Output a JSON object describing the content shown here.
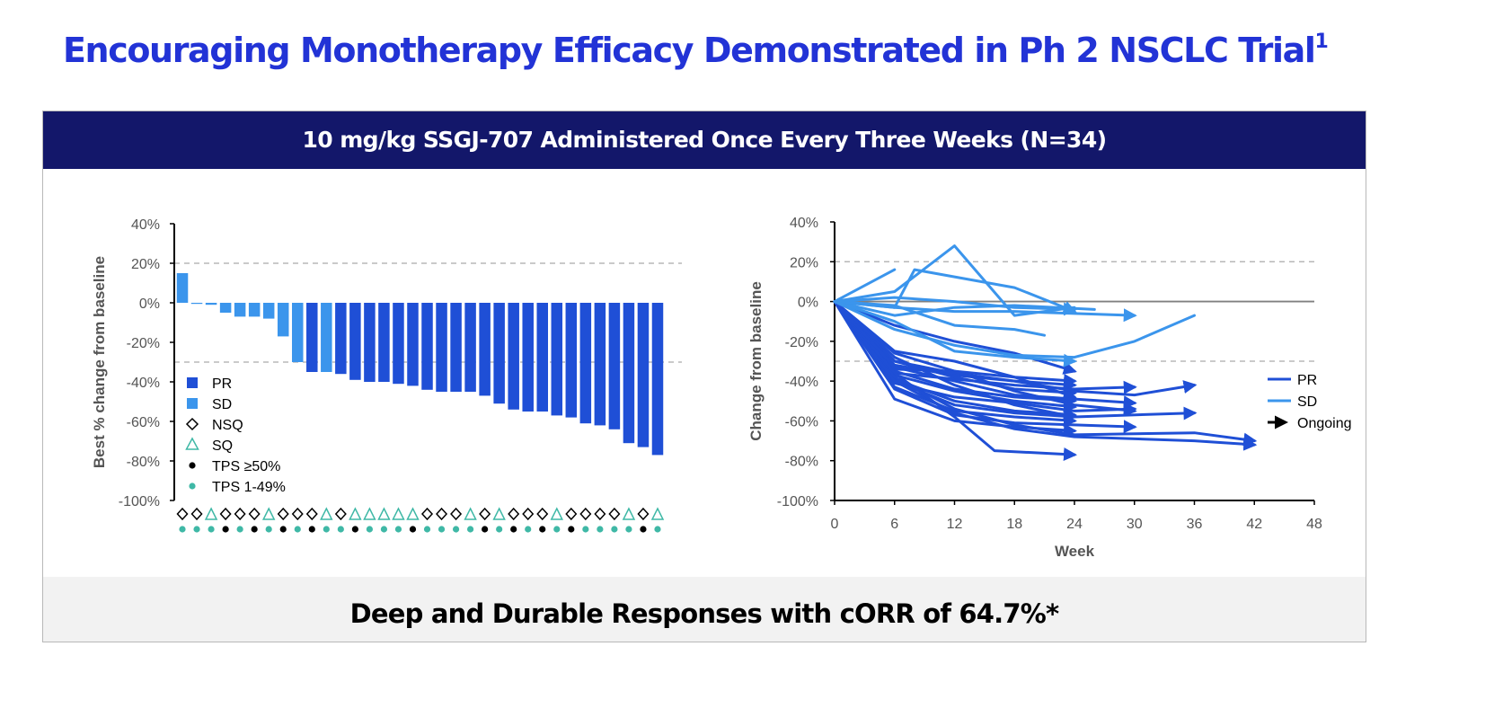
{
  "page": {
    "title": "Encouraging Monotherapy Efficacy Demonstrated in Ph 2 NSCLC Trial",
    "title_sup": "1",
    "banner": "10 mg/kg SSGJ-707 Administered Once Every Three Weeks (N=34)",
    "footer": "Deep and Durable Responses with cORR of 64.7%*"
  },
  "colors": {
    "pr": "#1f4fd6",
    "sd": "#3b95ec",
    "sq": "#3fb8a6",
    "tps_high": "#000000",
    "tps_low": "#3fb8a6",
    "title": "#2233d6",
    "banner": "#13176a"
  },
  "chart_data": [
    {
      "type": "bar",
      "ylabel": "Best % change from baseline",
      "ylim": [
        -100,
        40
      ],
      "yticks": [
        40,
        20,
        0,
        -20,
        -40,
        -60,
        -80,
        -100
      ],
      "ytick_labels": [
        "40%",
        "20%",
        "0%",
        "-20%",
        "-40%",
        "-60%",
        "-80%",
        "-100%"
      ],
      "reference_lines": [
        20,
        -30
      ],
      "legend": [
        {
          "label": "PR",
          "kind": "square-pr"
        },
        {
          "label": "SD",
          "kind": "square-sd"
        },
        {
          "label": "NSQ",
          "kind": "diamond"
        },
        {
          "label": "SQ",
          "kind": "triangle"
        },
        {
          "label": "TPS ≥50%",
          "kind": "dot-black"
        },
        {
          "label": "TPS 1-49%",
          "kind": "dot-teal"
        }
      ],
      "values": [
        15,
        -0.5,
        -1,
        -5,
        -7,
        -7,
        -8,
        -17,
        -30,
        -35,
        -35,
        -36,
        -39,
        -40,
        -40,
        -41,
        -42,
        -44,
        -45,
        -45,
        -45,
        -47,
        -51,
        -54,
        -55,
        -55,
        -57,
        -58,
        -61,
        -62,
        -64,
        -71,
        -73,
        -77
      ],
      "response": [
        "SD",
        "SD",
        "SD",
        "SD",
        "SD",
        "SD",
        "SD",
        "SD",
        "SD",
        "PR",
        "SD",
        "PR",
        "PR",
        "PR",
        "PR",
        "PR",
        "PR",
        "PR",
        "PR",
        "PR",
        "PR",
        "PR",
        "PR",
        "PR",
        "PR",
        "PR",
        "PR",
        "PR",
        "PR",
        "PR",
        "PR",
        "PR",
        "PR",
        "PR"
      ],
      "histology": [
        "NSQ",
        "NSQ",
        "SQ",
        "NSQ",
        "NSQ",
        "NSQ",
        "SQ",
        "NSQ",
        "NSQ",
        "NSQ",
        "SQ",
        "NSQ",
        "SQ",
        "SQ",
        "SQ",
        "SQ",
        "SQ",
        "NSQ",
        "NSQ",
        "NSQ",
        "SQ",
        "NSQ",
        "SQ",
        "NSQ",
        "NSQ",
        "NSQ",
        "SQ",
        "NSQ",
        "NSQ",
        "NSQ",
        "NSQ",
        "SQ",
        "NSQ",
        "SQ"
      ],
      "tps": [
        "1-49%",
        "1-49%",
        "1-49%",
        "≥50%",
        "1-49%",
        "≥50%",
        "1-49%",
        "≥50%",
        "1-49%",
        "≥50%",
        "1-49%",
        "1-49%",
        "≥50%",
        "1-49%",
        "1-49%",
        "1-49%",
        "≥50%",
        "1-49%",
        "1-49%",
        "1-49%",
        "1-49%",
        "≥50%",
        "1-49%",
        "≥50%",
        "1-49%",
        "≥50%",
        "1-49%",
        "≥50%",
        "1-49%",
        "1-49%",
        "1-49%",
        "1-49%",
        "≥50%",
        "1-49%"
      ]
    },
    {
      "type": "line",
      "ylabel": "Change from baseline",
      "xlabel": "Week",
      "xlim": [
        0,
        48
      ],
      "ylim": [
        -100,
        40
      ],
      "xticks": [
        0,
        6,
        12,
        18,
        24,
        30,
        36,
        42,
        48
      ],
      "yticks": [
        40,
        20,
        0,
        -20,
        -40,
        -60,
        -80,
        -100
      ],
      "ytick_labels": [
        "40%",
        "20%",
        "0%",
        "-20%",
        "-40%",
        "-60%",
        "-80%",
        "-100%"
      ],
      "reference_lines": [
        20,
        -30
      ],
      "legend": [
        {
          "label": "PR",
          "kind": "line-pr"
        },
        {
          "label": "SD",
          "kind": "line-sd"
        },
        {
          "label": "Ongoing",
          "kind": "arrow"
        }
      ],
      "series": [
        {
          "response": "SD",
          "ongoing": false,
          "points": [
            [
              0,
              0
            ],
            [
              6,
              16
            ]
          ]
        },
        {
          "response": "SD",
          "ongoing": false,
          "points": [
            [
              0,
              0
            ],
            [
              6,
              5
            ],
            [
              12,
              28
            ],
            [
              18,
              -7
            ],
            [
              24,
              -3
            ]
          ]
        },
        {
          "response": "SD",
          "ongoing": true,
          "points": [
            [
              0,
              0
            ],
            [
              6,
              -3
            ],
            [
              8,
              16
            ],
            [
              18,
              7
            ],
            [
              24,
              -5
            ]
          ]
        },
        {
          "response": "SD",
          "ongoing": false,
          "points": [
            [
              0,
              0
            ],
            [
              6,
              -7
            ],
            [
              12,
              -3
            ],
            [
              18,
              -2
            ],
            [
              26,
              -4
            ]
          ]
        },
        {
          "response": "SD",
          "ongoing": true,
          "points": [
            [
              0,
              0
            ],
            [
              6,
              2
            ],
            [
              12,
              0
            ],
            [
              18,
              -3
            ],
            [
              24,
              -4
            ]
          ]
        },
        {
          "response": "SD",
          "ongoing": true,
          "points": [
            [
              0,
              0
            ],
            [
              6,
              -3
            ],
            [
              12,
              -5
            ],
            [
              18,
              -5
            ],
            [
              24,
              -6
            ],
            [
              30,
              -7
            ]
          ]
        },
        {
          "response": "SD",
          "ongoing": false,
          "points": [
            [
              0,
              0
            ],
            [
              6,
              -2
            ],
            [
              12,
              -12
            ],
            [
              18,
              -14
            ],
            [
              21,
              -17
            ]
          ]
        },
        {
          "response": "SD",
          "ongoing": false,
          "points": [
            [
              0,
              0
            ],
            [
              6,
              -14
            ],
            [
              12,
              -22
            ],
            [
              18,
              -27
            ],
            [
              24,
              -28
            ],
            [
              30,
              -20
            ],
            [
              36,
              -7
            ]
          ]
        },
        {
          "response": "SD",
          "ongoing": true,
          "points": [
            [
              0,
              0
            ],
            [
              6,
              -10
            ],
            [
              12,
              -25
            ],
            [
              18,
              -28
            ],
            [
              24,
              -30
            ]
          ]
        },
        {
          "response": "PR",
          "ongoing": true,
          "points": [
            [
              0,
              0
            ],
            [
              6,
              -12
            ],
            [
              12,
              -20
            ],
            [
              18,
              -26
            ],
            [
              24,
              -35
            ]
          ]
        },
        {
          "response": "PR",
          "ongoing": true,
          "points": [
            [
              0,
              0
            ],
            [
              6,
              -34
            ],
            [
              12,
              -35
            ],
            [
              18,
              -38
            ],
            [
              24,
              -40
            ]
          ]
        },
        {
          "response": "PR",
          "ongoing": true,
          "points": [
            [
              0,
              0
            ],
            [
              6,
              -32
            ],
            [
              12,
              -37
            ],
            [
              18,
              -40
            ],
            [
              24,
              -42
            ]
          ]
        },
        {
          "response": "PR",
          "ongoing": true,
          "points": [
            [
              0,
              0
            ],
            [
              6,
              -36
            ],
            [
              12,
              -39
            ],
            [
              18,
              -42
            ],
            [
              24,
              -44
            ],
            [
              30,
              -43
            ]
          ]
        },
        {
          "response": "PR",
          "ongoing": true,
          "points": [
            [
              0,
              0
            ],
            [
              6,
              -30
            ],
            [
              12,
              -38
            ],
            [
              18,
              -44
            ],
            [
              24,
              -46
            ]
          ]
        },
        {
          "response": "PR",
          "ongoing": true,
          "points": [
            [
              0,
              0
            ],
            [
              6,
              -25
            ],
            [
              12,
              -30
            ],
            [
              18,
              -38
            ],
            [
              24,
              -48
            ]
          ]
        },
        {
          "response": "PR",
          "ongoing": true,
          "points": [
            [
              0,
              0
            ],
            [
              6,
              -35
            ],
            [
              12,
              -44
            ],
            [
              18,
              -48
            ],
            [
              24,
              -50
            ]
          ]
        },
        {
          "response": "PR",
          "ongoing": true,
          "points": [
            [
              0,
              0
            ],
            [
              6,
              -37
            ],
            [
              12,
              -45
            ],
            [
              18,
              -50
            ],
            [
              24,
              -53
            ]
          ]
        },
        {
          "response": "PR",
          "ongoing": true,
          "points": [
            [
              0,
              0
            ],
            [
              6,
              -41
            ],
            [
              12,
              -48
            ],
            [
              18,
              -51
            ],
            [
              24,
              -55
            ],
            [
              30,
              -54
            ]
          ]
        },
        {
          "response": "PR",
          "ongoing": true,
          "points": [
            [
              0,
              0
            ],
            [
              6,
              -39
            ],
            [
              12,
              -50
            ],
            [
              18,
              -55
            ],
            [
              24,
              -57
            ]
          ]
        },
        {
          "response": "PR",
          "ongoing": true,
          "points": [
            [
              0,
              0
            ],
            [
              6,
              -40
            ],
            [
              12,
              -52
            ],
            [
              18,
              -56
            ],
            [
              24,
              -58
            ],
            [
              36,
              -56
            ]
          ]
        },
        {
          "response": "PR",
          "ongoing": true,
          "points": [
            [
              0,
              0
            ],
            [
              6,
              -43
            ],
            [
              12,
              -55
            ],
            [
              18,
              -58
            ],
            [
              24,
              -60
            ]
          ]
        },
        {
          "response": "PR",
          "ongoing": true,
          "points": [
            [
              0,
              0
            ],
            [
              6,
              -44
            ],
            [
              12,
              -57
            ],
            [
              18,
              -61
            ],
            [
              24,
              -62
            ],
            [
              30,
              -63
            ]
          ]
        },
        {
          "response": "PR",
          "ongoing": true,
          "points": [
            [
              0,
              0
            ],
            [
              6,
              -49
            ],
            [
              12,
              -60
            ],
            [
              18,
              -63
            ],
            [
              24,
              -65
            ]
          ]
        },
        {
          "response": "PR",
          "ongoing": true,
          "points": [
            [
              0,
              0
            ],
            [
              6,
              -38
            ],
            [
              12,
              -54
            ],
            [
              18,
              -62
            ],
            [
              24,
              -67
            ],
            [
              36,
              -66
            ],
            [
              42,
              -70
            ]
          ]
        },
        {
          "response": "PR",
          "ongoing": true,
          "points": [
            [
              0,
              0
            ],
            [
              6,
              -40
            ],
            [
              12,
              -56
            ],
            [
              18,
              -64
            ],
            [
              24,
              -68
            ],
            [
              36,
              -70
            ],
            [
              42,
              -72
            ]
          ]
        },
        {
          "response": "PR",
          "ongoing": true,
          "points": [
            [
              0,
              0
            ],
            [
              6,
              -36
            ],
            [
              12,
              -58
            ],
            [
              16,
              -75
            ],
            [
              24,
              -77
            ]
          ]
        },
        {
          "response": "PR",
          "ongoing": true,
          "points": [
            [
              0,
              0
            ],
            [
              6,
              -30
            ],
            [
              12,
              -36
            ],
            [
              18,
              -40
            ],
            [
              24,
              -45
            ],
            [
              30,
              -47
            ],
            [
              36,
              -42
            ]
          ]
        },
        {
          "response": "PR",
          "ongoing": true,
          "points": [
            [
              0,
              0
            ],
            [
              6,
              -26
            ],
            [
              12,
              -35
            ],
            [
              18,
              -45
            ],
            [
              24,
              -52
            ],
            [
              30,
              -55
            ]
          ]
        },
        {
          "response": "PR",
          "ongoing": true,
          "points": [
            [
              0,
              0
            ],
            [
              6,
              -28
            ],
            [
              12,
              -42
            ],
            [
              18,
              -52
            ],
            [
              24,
              -58
            ]
          ]
        },
        {
          "response": "PR",
          "ongoing": true,
          "points": [
            [
              0,
              0
            ],
            [
              6,
              -33
            ],
            [
              12,
              -40
            ],
            [
              18,
              -47
            ],
            [
              24,
              -49
            ],
            [
              30,
              -51
            ]
          ]
        }
      ]
    }
  ]
}
